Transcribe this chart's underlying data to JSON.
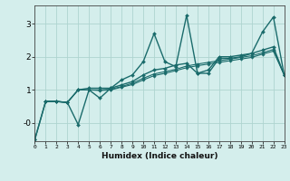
{
  "xlabel": "Humidex (Indice chaleur)",
  "background_color": "#d4eeec",
  "grid_color": "#aed4d0",
  "line_color": "#1a6b6b",
  "xlim": [
    0,
    23
  ],
  "ylim": [
    -0.55,
    3.55
  ],
  "line1_y": [
    -0.5,
    0.65,
    0.65,
    0.62,
    -0.05,
    1.0,
    0.75,
    1.05,
    1.3,
    1.45,
    1.85,
    2.7,
    1.85,
    1.7,
    3.25,
    1.5,
    1.5,
    1.95,
    1.95,
    2.0,
    2.1,
    2.75,
    3.2,
    1.45
  ],
  "line2_y": [
    -0.5,
    0.65,
    0.65,
    0.62,
    1.0,
    1.05,
    1.05,
    1.05,
    1.15,
    1.25,
    1.45,
    1.6,
    1.65,
    1.75,
    1.8,
    1.5,
    1.6,
    2.0,
    2.0,
    2.05,
    2.1,
    2.2,
    2.3,
    1.45
  ],
  "line3_y": [
    null,
    0.65,
    0.65,
    0.62,
    1.0,
    1.0,
    1.0,
    1.02,
    1.1,
    1.2,
    1.35,
    1.48,
    1.55,
    1.62,
    1.72,
    1.78,
    1.83,
    1.88,
    1.93,
    1.98,
    2.03,
    2.12,
    2.22,
    1.45
  ],
  "line4_y": [
    null,
    0.65,
    0.65,
    0.62,
    1.0,
    1.0,
    0.98,
    1.0,
    1.08,
    1.16,
    1.3,
    1.43,
    1.5,
    1.58,
    1.67,
    1.73,
    1.78,
    1.83,
    1.88,
    1.93,
    1.98,
    2.08,
    2.17,
    1.45
  ]
}
